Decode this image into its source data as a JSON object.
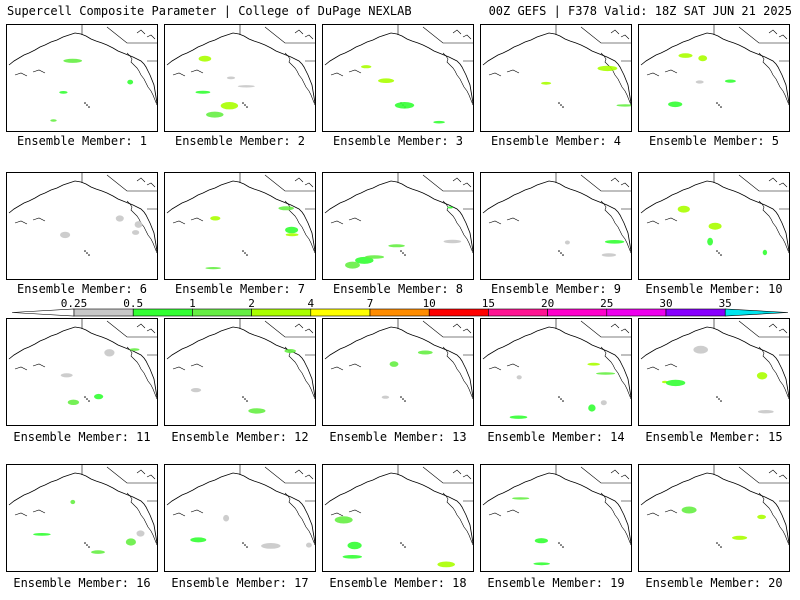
{
  "header": {
    "left": "Supercell Composite Parameter | College of DuPage NEXLAB",
    "right": "00Z GEFS | F378 Valid: 18Z SAT JUN 21 2025"
  },
  "colorbar": {
    "ticks": [
      "0.25",
      "0.5",
      "1",
      "2",
      "4",
      "7",
      "10",
      "15",
      "20",
      "25",
      "30",
      "35"
    ],
    "colors": [
      "#c8c8c8",
      "#33ff33",
      "#66ee44",
      "#aaff00",
      "#ffff00",
      "#ff8c00",
      "#ff0000",
      "#ff1493",
      "#ff00cc",
      "#ee00ee",
      "#8800ff",
      "#9966cc",
      "#00e5ee"
    ]
  },
  "members": [
    {
      "label": "Ensemble Member: 1"
    },
    {
      "label": "Ensemble Member: 2"
    },
    {
      "label": "Ensemble Member: 3"
    },
    {
      "label": "Ensemble Member: 4"
    },
    {
      "label": "Ensemble Member: 5"
    },
    {
      "label": "Ensemble Member: 6"
    },
    {
      "label": "Ensemble Member: 7"
    },
    {
      "label": "Ensemble Member: 8"
    },
    {
      "label": "Ensemble Member: 9"
    },
    {
      "label": "Ensemble Member: 10"
    },
    {
      "label": "Ensemble Member: 11"
    },
    {
      "label": "Ensemble Member: 12"
    },
    {
      "label": "Ensemble Member: 13"
    },
    {
      "label": "Ensemble Member: 14"
    },
    {
      "label": "Ensemble Member: 15"
    },
    {
      "label": "Ensemble Member: 16"
    },
    {
      "label": "Ensemble Member: 17"
    },
    {
      "label": "Ensemble Member: 18"
    },
    {
      "label": "Ensemble Member: 19"
    },
    {
      "label": "Ensemble Member: 20"
    }
  ]
}
